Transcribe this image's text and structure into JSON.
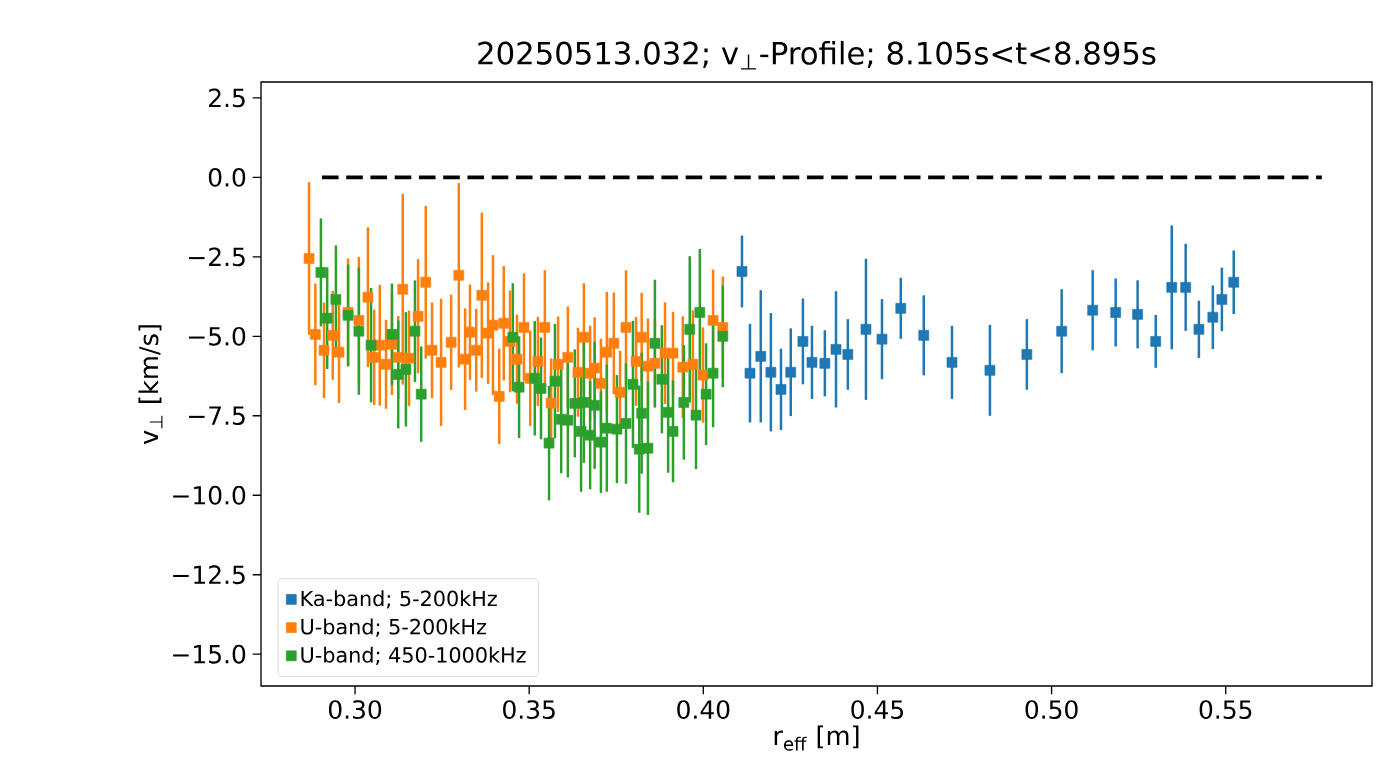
{
  "chart_data": {
    "type": "scatter",
    "title": "20250513.032; v$_{⊥}$-Profile; 8.105s<t<8.895s",
    "xlabel": "r$_{eff}$ [m]",
    "ylabel": "v$_{⊥}$ [km/s]",
    "xlim": [
      0.273,
      0.592
    ],
    "ylim": [
      -16.0,
      3.0
    ],
    "xticks": [
      {
        "value": 0.3,
        "label": "0.30"
      },
      {
        "value": 0.35,
        "label": "0.35"
      },
      {
        "value": 0.4,
        "label": "0.40"
      },
      {
        "value": 0.45,
        "label": "0.45"
      },
      {
        "value": 0.5,
        "label": "0.50"
      },
      {
        "value": 0.55,
        "label": "0.55"
      }
    ],
    "yticks": [
      {
        "value": 2.5,
        "label": "2.5"
      },
      {
        "value": 0.0,
        "label": "0.0"
      },
      {
        "value": -2.5,
        "label": "−2.5"
      },
      {
        "value": -5.0,
        "label": "−5.0"
      },
      {
        "value": -7.5,
        "label": "−7.5"
      },
      {
        "value": -10.0,
        "label": "−10.0"
      },
      {
        "value": -12.5,
        "label": "−12.5"
      },
      {
        "value": -15.0,
        "label": "−15.0"
      }
    ],
    "marker": "square",
    "legend": "bottom left",
    "grid": false,
    "series": [
      {
        "name": "Ka-band; 5-200kHz",
        "color": "#1f77b4",
        "x": [
          0.4111,
          0.4134,
          0.4165,
          0.4194,
          0.4223,
          0.4251,
          0.4286,
          0.4312,
          0.4349,
          0.4381,
          0.4415,
          0.4467,
          0.4513,
          0.4567,
          0.4633,
          0.4714,
          0.4823,
          0.4929,
          0.5029,
          0.5118,
          0.5184,
          0.5247,
          0.5299,
          0.5345,
          0.5385,
          0.5423,
          0.5463,
          0.5489,
          0.5523
        ],
        "values": [
          -2.96,
          -6.16,
          -5.63,
          -6.13,
          -6.67,
          -6.13,
          -5.16,
          -5.82,
          -5.85,
          -5.41,
          -5.57,
          -4.78,
          -5.09,
          -4.12,
          -4.97,
          -5.82,
          -6.07,
          -5.57,
          -4.84,
          -4.18,
          -4.25,
          -4.31,
          -5.16,
          -3.46,
          -3.46,
          -4.78,
          -4.4,
          -3.84,
          -3.3
        ],
        "errors": [
          1.13,
          1.55,
          2.08,
          1.86,
          1.28,
          1.38,
          1.35,
          1.15,
          1.04,
          1.83,
          1.11,
          2.22,
          1.26,
          0.96,
          1.26,
          1.15,
          1.43,
          1.11,
          1.32,
          1.26,
          1.07,
          1.07,
          0.83,
          1.95,
          1.37,
          0.9,
          1.0,
          1.0,
          1.0
        ]
      },
      {
        "name": "U-band; 5-200kHz",
        "color": "#ff7f0e",
        "x": [
          0.2868,
          0.2886,
          0.2911,
          0.2936,
          0.2954,
          0.298,
          0.3011,
          0.3037,
          0.3055,
          0.3071,
          0.3089,
          0.3106,
          0.3124,
          0.3137,
          0.3155,
          0.3181,
          0.3203,
          0.3221,
          0.3247,
          0.3276,
          0.3298,
          0.3316,
          0.333,
          0.3348,
          0.3364,
          0.3382,
          0.3396,
          0.3414,
          0.3427,
          0.3445,
          0.3465,
          0.3485,
          0.3503,
          0.3525,
          0.3545,
          0.3563,
          0.3583,
          0.3611,
          0.364,
          0.3657,
          0.3675,
          0.3688,
          0.3706,
          0.3723,
          0.3743,
          0.3761,
          0.3778,
          0.3807,
          0.3823,
          0.3841,
          0.3861,
          0.389,
          0.3913,
          0.3941,
          0.397,
          0.3999,
          0.4028,
          0.4056
        ],
        "values": [
          -2.55,
          -4.94,
          -5.44,
          -4.97,
          -5.5,
          -4.25,
          -4.5,
          -3.77,
          -5.66,
          -5.28,
          -5.88,
          -5.25,
          -5.66,
          -3.52,
          -5.69,
          -4.37,
          -3.3,
          -5.44,
          -5.82,
          -5.19,
          -3.08,
          -5.72,
          -4.87,
          -5.44,
          -3.71,
          -4.9,
          -4.65,
          -6.89,
          -4.59,
          -5.16,
          -5.72,
          -4.72,
          -6.32,
          -5.79,
          -4.72,
          -7.1,
          -5.88,
          -5.66,
          -6.13,
          -5.03,
          -6.16,
          -6.0,
          -6.48,
          -5.5,
          -5.22,
          -6.76,
          -4.72,
          -5.79,
          -5.03,
          -5.94,
          -5.85,
          -5.53,
          -5.53,
          -5.97,
          -5.88,
          -6.22,
          -4.5,
          -4.72
        ],
        "errors": [
          2.4,
          1.6,
          1.5,
          1.4,
          1.6,
          1.7,
          2.0,
          2.2,
          1.5,
          1.9,
          1.4,
          1.6,
          1.3,
          3.0,
          1.5,
          1.8,
          2.4,
          1.5,
          2.0,
          1.5,
          2.9,
          1.6,
          1.5,
          1.3,
          2.6,
          1.6,
          2.2,
          1.5,
          1.8,
          1.6,
          1.4,
          1.7,
          1.5,
          1.4,
          1.8,
          1.4,
          1.5,
          1.6,
          1.4,
          1.7,
          1.5,
          1.6,
          1.4,
          1.9,
          1.6,
          1.3,
          1.8,
          1.4,
          1.4,
          1.5,
          1.4,
          1.6,
          1.3,
          1.6,
          1.7,
          1.5,
          1.6,
          1.6
        ]
      },
      {
        "name": "U-band; 450-1000kHz",
        "color": "#2ca02c",
        "x": [
          0.2902,
          0.292,
          0.2945,
          0.298,
          0.3011,
          0.3046,
          0.3106,
          0.3124,
          0.3146,
          0.3172,
          0.319,
          0.3453,
          0.3471,
          0.3516,
          0.3534,
          0.3557,
          0.3574,
          0.3592,
          0.3611,
          0.3631,
          0.3649,
          0.3657,
          0.3675,
          0.3688,
          0.3706,
          0.3723,
          0.3752,
          0.3778,
          0.3798,
          0.3816,
          0.3823,
          0.3841,
          0.3861,
          0.3881,
          0.3899,
          0.3913,
          0.3944,
          0.3961,
          0.3979,
          0.399,
          0.4008,
          0.4028,
          0.4056
        ],
        "values": [
          -2.99,
          -4.43,
          -3.84,
          -4.34,
          -4.84,
          -5.28,
          -4.94,
          -6.2,
          -6.04,
          -4.84,
          -6.82,
          -5.03,
          -6.6,
          -6.32,
          -6.64,
          -8.36,
          -6.41,
          -7.61,
          -7.64,
          -7.11,
          -7.99,
          -7.08,
          -8.11,
          -7.17,
          -8.33,
          -7.89,
          -7.92,
          -7.74,
          -6.51,
          -8.55,
          -7.42,
          -8.52,
          -5.22,
          -6.35,
          -7.39,
          -7.99,
          -7.08,
          -4.78,
          -7.48,
          -4.25,
          -6.82,
          -6.16,
          -5.0
        ],
        "errors": [
          1.7,
          1.6,
          1.7,
          1.6,
          2.0,
          1.8,
          1.6,
          1.7,
          1.8,
          1.6,
          1.5,
          1.7,
          1.6,
          1.8,
          1.6,
          1.8,
          1.8,
          1.7,
          1.8,
          1.7,
          1.9,
          1.9,
          1.7,
          2.0,
          1.6,
          2.0,
          1.7,
          1.9,
          2.0,
          2.0,
          1.9,
          2.1,
          2.0,
          1.7,
          1.9,
          1.6,
          1.8,
          2.3,
          1.7,
          2.0,
          1.6,
          1.7,
          1.6
        ]
      },
      {
        "type": "line",
        "color": "#000000",
        "line_style": "dashed",
        "marker": "none",
        "x": [
          0.2905,
          0.5776
        ],
        "values": [
          0.0,
          0.0
        ]
      }
    ]
  }
}
